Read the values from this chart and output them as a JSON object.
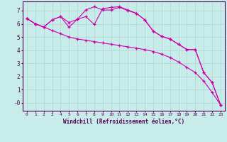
{
  "xlabel": "Windchill (Refroidissement éolien,°C)",
  "background_color": "#c8ecea",
  "grid_color": "#b0d4d0",
  "line_color": "#cc00aa",
  "xlim": [
    -0.5,
    23.5
  ],
  "ylim": [
    -0.6,
    7.7
  ],
  "yticks": [
    0,
    1,
    2,
    3,
    4,
    5,
    6,
    7
  ],
  "ytick_labels": [
    "-0",
    "1",
    "2",
    "3",
    "4",
    "5",
    "6",
    "7"
  ],
  "xticks": [
    0,
    1,
    2,
    3,
    4,
    5,
    6,
    7,
    8,
    9,
    10,
    11,
    12,
    13,
    14,
    15,
    16,
    17,
    18,
    19,
    20,
    21,
    22,
    23
  ],
  "line1_x": [
    0,
    1,
    2,
    3,
    4,
    5,
    6,
    7,
    8,
    9,
    10,
    11,
    12,
    13,
    14,
    15,
    16,
    17,
    18,
    19,
    20,
    21,
    22,
    23
  ],
  "line1_y": [
    6.4,
    6.0,
    5.75,
    5.5,
    5.25,
    5.0,
    4.85,
    4.75,
    4.65,
    4.55,
    4.45,
    4.35,
    4.25,
    4.15,
    4.05,
    3.9,
    3.7,
    3.45,
    3.1,
    2.7,
    2.3,
    1.65,
    0.8,
    -0.15
  ],
  "line2_x": [
    0,
    1,
    2,
    3,
    4,
    5,
    6,
    7,
    8,
    9,
    10,
    11,
    12,
    13,
    14,
    15,
    16,
    17,
    18,
    19,
    20,
    21,
    22,
    23
  ],
  "line2_y": [
    6.4,
    6.0,
    5.75,
    6.3,
    6.55,
    6.1,
    6.35,
    7.05,
    7.3,
    7.05,
    7.05,
    7.25,
    7.0,
    6.8,
    6.3,
    5.45,
    5.05,
    4.85,
    4.45,
    4.05,
    4.05,
    2.3,
    1.55,
    -0.15
  ],
  "line3_x": [
    0,
    1,
    2,
    3,
    4,
    5,
    6,
    7,
    8,
    9,
    10,
    11,
    12,
    13,
    14,
    15,
    16,
    17,
    18,
    19,
    20,
    21,
    22,
    23
  ],
  "line3_y": [
    6.4,
    6.0,
    5.75,
    6.3,
    6.55,
    5.75,
    6.35,
    6.55,
    5.95,
    7.15,
    7.25,
    7.3,
    7.05,
    6.8,
    6.3,
    5.45,
    5.05,
    4.85,
    4.45,
    4.05,
    4.05,
    2.3,
    1.55,
    -0.15
  ]
}
